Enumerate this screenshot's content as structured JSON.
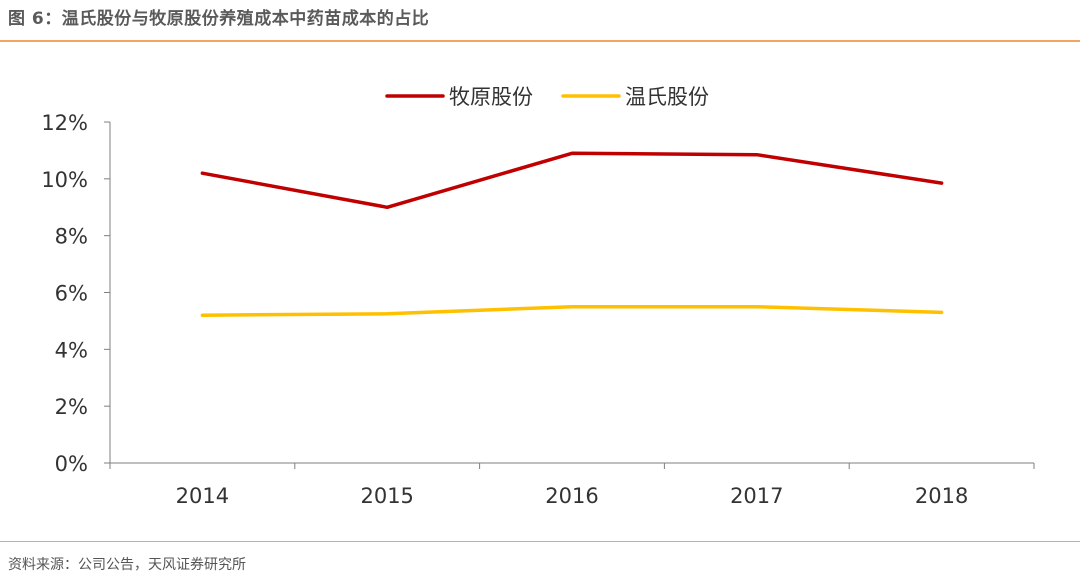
{
  "header": {
    "title": "图 6：温氏股份与牧原股份养殖成本中药苗成本的占比"
  },
  "footer": {
    "source": "资料来源：公司公告，天风证券研究所"
  },
  "chart_data": {
    "type": "line",
    "x": [
      "2014",
      "2015",
      "2016",
      "2017",
      "2018"
    ],
    "ylim": [
      0,
      12
    ],
    "yticks": [
      "0%",
      "2%",
      "4%",
      "6%",
      "8%",
      "10%",
      "12%"
    ],
    "legend_position": "top-center",
    "grid": false,
    "series": [
      {
        "name": "牧原股份",
        "color": "#c00000",
        "values": [
          10.2,
          9.0,
          10.9,
          10.85,
          9.85
        ]
      },
      {
        "name": "温氏股份",
        "color": "#ffc000",
        "values": [
          5.2,
          5.25,
          5.5,
          5.5,
          5.3
        ]
      }
    ]
  }
}
